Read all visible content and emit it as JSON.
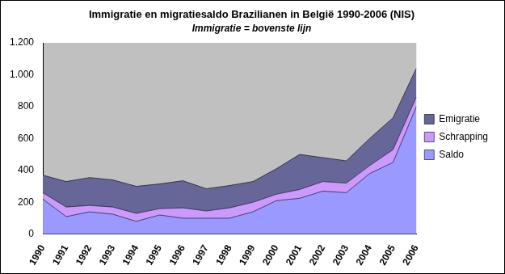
{
  "chart_data": {
    "type": "area",
    "title": "Immigratie en migratiesaldo Brazilianen in België 1990-2006 (NIS)",
    "subtitle": "Immigratie = bovenste lijn",
    "categories": [
      "1990",
      "1991",
      "1992",
      "1993",
      "1994",
      "1995",
      "1996",
      "1997",
      "1998",
      "1999",
      "2000",
      "2001",
      "2002",
      "2003",
      "2004",
      "2005",
      "2006"
    ],
    "series": [
      {
        "name": "Saldo",
        "color": "#9999ff",
        "values": [
          220,
          110,
          140,
          125,
          80,
          120,
          100,
          100,
          100,
          140,
          210,
          225,
          270,
          260,
          380,
          450,
          800
        ]
      },
      {
        "name": "Schrapping",
        "color": "#cc99ff",
        "values": [
          40,
          60,
          40,
          45,
          50,
          40,
          65,
          45,
          65,
          60,
          40,
          55,
          60,
          60,
          50,
          80,
          60
        ]
      },
      {
        "name": "Emigratie",
        "color": "#666699",
        "values": [
          110,
          160,
          175,
          170,
          170,
          155,
          170,
          140,
          140,
          130,
          160,
          220,
          150,
          140,
          170,
          200,
          180
        ]
      }
    ],
    "stacked": true,
    "ylim": [
      0,
      1200
    ],
    "yticks": [
      0,
      200,
      400,
      600,
      800,
      {
        "value": 1000,
        "label": "1.000"
      },
      {
        "value": 1200,
        "label": "1.200"
      }
    ],
    "grid": false,
    "legend": "right"
  }
}
